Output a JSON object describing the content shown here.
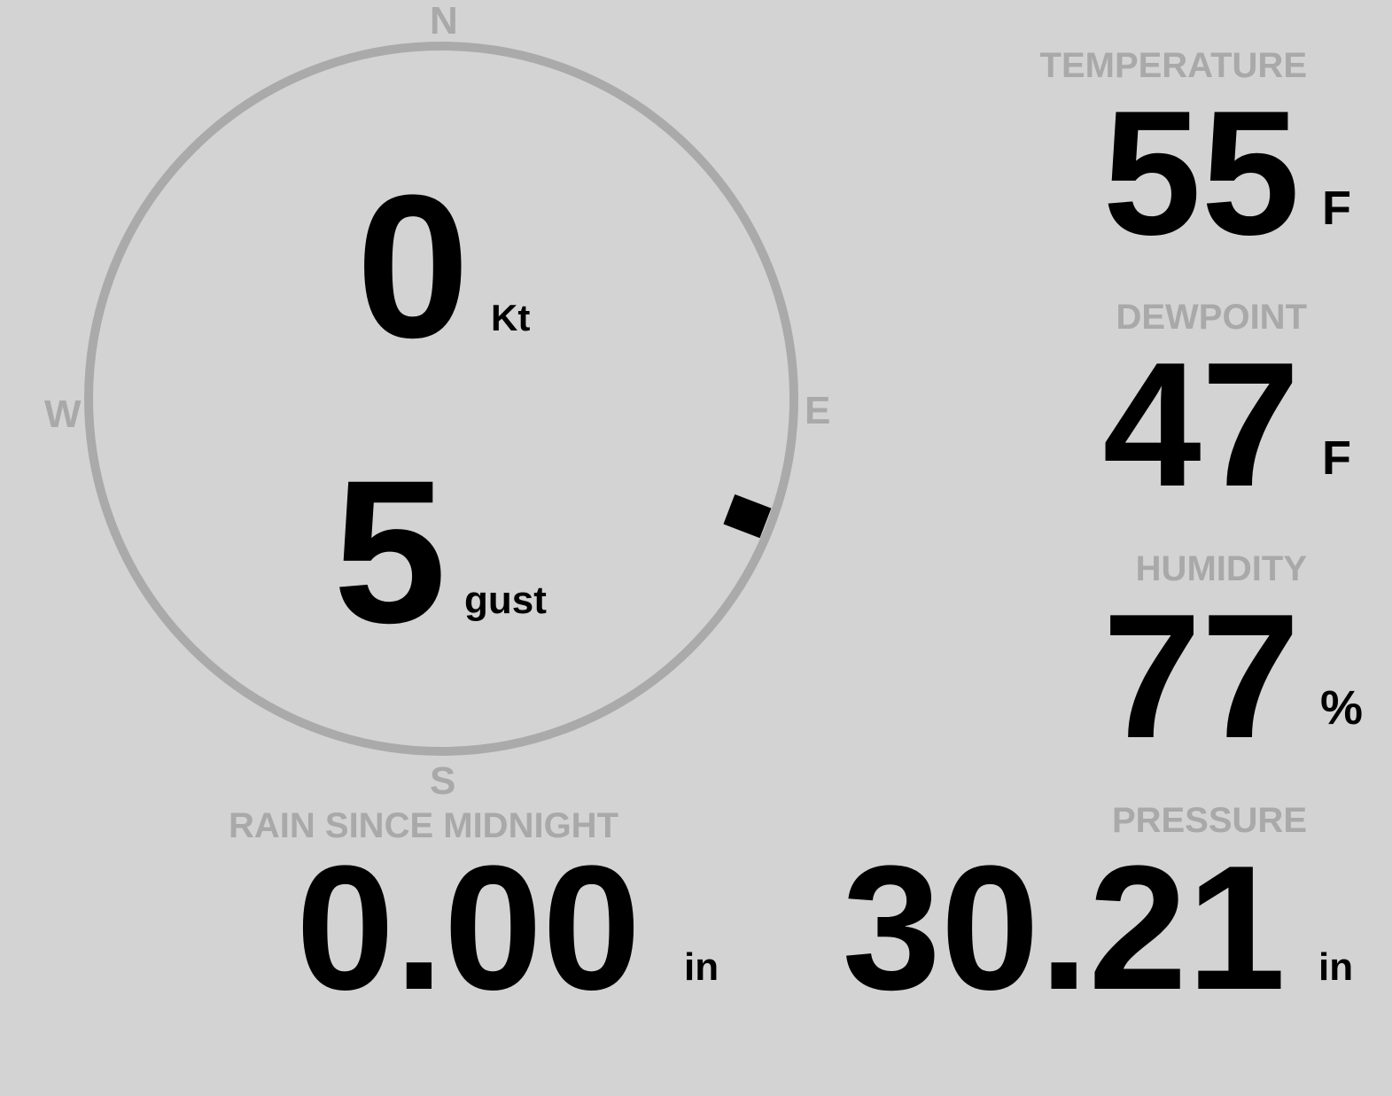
{
  "compass": {
    "north": "N",
    "south": "S",
    "east": "E",
    "west": "W",
    "wind_direction_deg": 111,
    "ring_color": "#aaaaaa"
  },
  "wind": {
    "speed": "0",
    "speed_unit": "Kt",
    "gust": "5",
    "gust_unit": "gust"
  },
  "temperature": {
    "label": "TEMPERATURE",
    "value": "55",
    "unit": "F"
  },
  "dewpoint": {
    "label": "DEWPOINT",
    "value": "47",
    "unit": "F"
  },
  "humidity": {
    "label": "HUMIDITY",
    "value": "77",
    "unit": "%"
  },
  "pressure": {
    "label": "PRESSURE",
    "value": "30.21",
    "unit": "in"
  },
  "rain": {
    "label": "RAIN SINCE MIDNIGHT",
    "value": "0.00",
    "unit": "in"
  },
  "colors": {
    "background": "#d3d3d3",
    "label": "#a9a9a9",
    "value": "#000000"
  }
}
